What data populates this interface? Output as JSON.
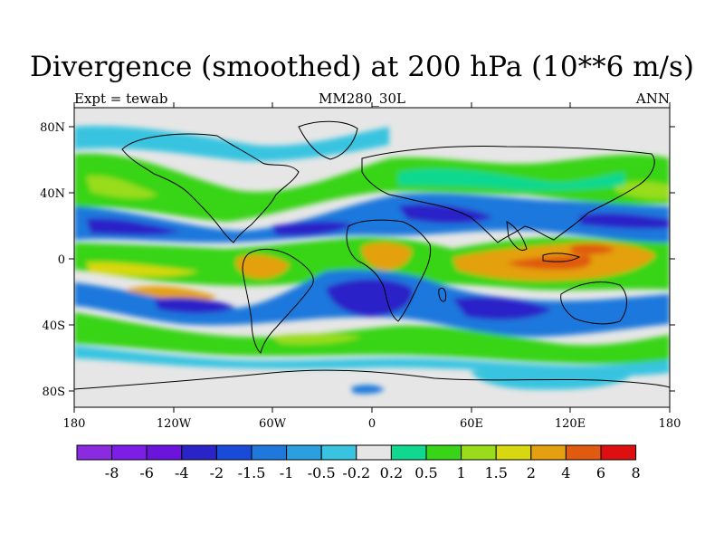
{
  "title": "Divergence (smoothed) at 200 hPa (10**6 m/s)",
  "subtitle_left": "Expt = tewab",
  "subtitle_center": "MM280_30L",
  "subtitle_right": "ANN",
  "map": {
    "projection": "cylindrical-equidistant",
    "lon_range": [
      -180,
      180
    ],
    "lat_range": [
      -90,
      90
    ],
    "land_fill": "none",
    "ocean_background": "#e6e6e6"
  },
  "x_ticks": [
    "180",
    "120W",
    "60W",
    "0",
    "60E",
    "120E",
    "180"
  ],
  "y_ticks": [
    "80N",
    "40N",
    "0",
    "40S",
    "80S"
  ],
  "colorbar": {
    "labels": [
      "-8",
      "-6",
      "-4",
      "-2",
      "-1.5",
      "-1",
      "-0.5",
      "-0.2",
      "0.2",
      "0.5",
      "1",
      "1.5",
      "2",
      "4",
      "6",
      "8"
    ],
    "colors": [
      "#8a2be2",
      "#7c1ee6",
      "#6a14dc",
      "#2a24c8",
      "#1a4ad8",
      "#1f78dc",
      "#2aa0e0",
      "#38c4e0",
      "#e6e6e6",
      "#10d890",
      "#38d418",
      "#98dc1c",
      "#d8d810",
      "#e4a010",
      "#e05a10",
      "#dd0f10"
    ]
  },
  "chart_data": {
    "type": "heatmap",
    "title": "Divergence (smoothed) at 200 hPa (10**6 m/s)",
    "levels": [
      -8,
      -6,
      -4,
      -2,
      -1.5,
      -1,
      -0.5,
      -0.2,
      0.2,
      0.5,
      1,
      1.5,
      2,
      4,
      6,
      8
    ],
    "x_ticks": [
      "180",
      "120W",
      "60W",
      "0",
      "60E",
      "120E",
      "180"
    ],
    "y_ticks": [
      "80N",
      "40N",
      "0",
      "40S",
      "80S"
    ],
    "regions": [
      {
        "name": "northern-midlat-green-band",
        "value": 1.0,
        "lon": [
          -180,
          180
        ],
        "lat": [
          38,
          62
        ]
      },
      {
        "name": "north-subtropical-blue-band",
        "value": -1.5,
        "lon": [
          -180,
          180
        ],
        "lat": [
          12,
          35
        ]
      },
      {
        "name": "itcz-orange-band",
        "value": 2,
        "lon": [
          -180,
          180
        ],
        "lat": [
          -12,
          8
        ]
      },
      {
        "name": "indonesia-red-core",
        "value": 6,
        "lon": [
          80,
          160
        ],
        "lat": [
          -10,
          6
        ]
      },
      {
        "name": "south-subtropical-blue-band",
        "value": -2,
        "lon": [
          -180,
          180
        ],
        "lat": [
          -40,
          -15
        ]
      },
      {
        "name": "south-atlantic-dark-blue",
        "value": -4,
        "lon": [
          -40,
          20
        ],
        "lat": [
          -40,
          -20
        ]
      },
      {
        "name": "southern-midlat-green-band",
        "value": 1.0,
        "lon": [
          -180,
          180
        ],
        "lat": [
          -60,
          -42
        ]
      },
      {
        "name": "antarctic-blue-patch",
        "value": -1,
        "lon": [
          -10,
          10
        ],
        "lat": [
          -83,
          -75
        ]
      },
      {
        "name": "antarctic-light-blue-patch",
        "value": -0.5,
        "lon": [
          60,
          170
        ],
        "lat": [
          -82,
          -70
        ]
      }
    ]
  }
}
